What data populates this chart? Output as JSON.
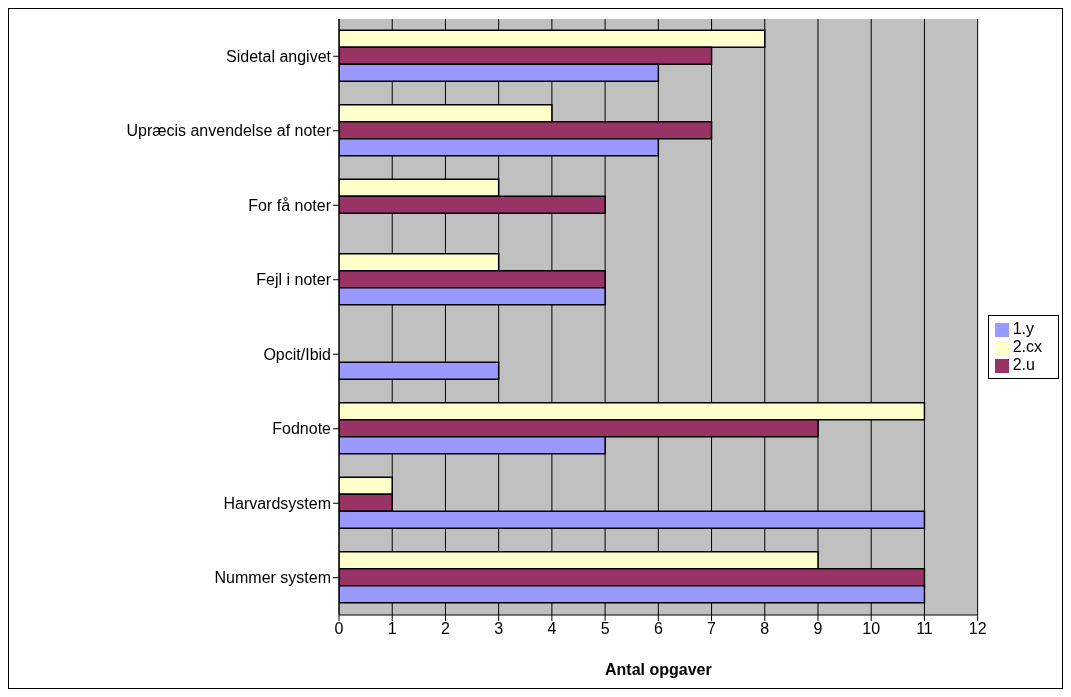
{
  "chart_data": {
    "type": "bar",
    "orientation": "horizontal",
    "xlabel": "Antal opgaver",
    "categories": [
      "Sidetal angivet",
      "Upræcis anvendelse af noter",
      "For få noter",
      "Fejl i noter",
      "Opcit/Ibid",
      "Fodnote",
      "Harvardsystem",
      "Nummer system"
    ],
    "series": [
      {
        "name": "2.cx",
        "color": "#ffffcc",
        "values": [
          8,
          4,
          3,
          3,
          0,
          11,
          1,
          9
        ]
      },
      {
        "name": "2.u",
        "color": "#993366",
        "values": [
          7,
          7,
          5,
          5,
          0,
          9,
          1,
          11
        ]
      },
      {
        "name": "1.y",
        "color": "#9999ff",
        "values": [
          6,
          6,
          0,
          5,
          3,
          5,
          11,
          11
        ]
      }
    ],
    "xlim": [
      0,
      12
    ],
    "xticks": [
      0,
      1,
      2,
      3,
      4,
      5,
      6,
      7,
      8,
      9,
      10,
      11,
      12
    ],
    "grid": "x",
    "legend": "right"
  }
}
